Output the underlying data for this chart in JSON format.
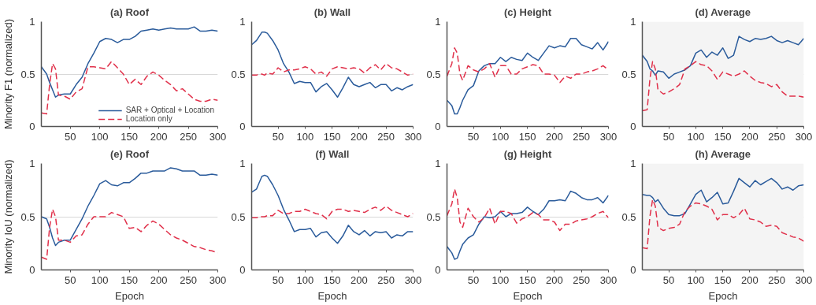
{
  "chart_data": [
    {
      "type": "line",
      "title": "(a) Roof",
      "ylabel": "Minority F1 (normalized)",
      "x": [
        1,
        10,
        15,
        20,
        25,
        30,
        40,
        50,
        60,
        70,
        80,
        90,
        100,
        110,
        120,
        130,
        140,
        150,
        160,
        170,
        180,
        190,
        200,
        210,
        220,
        230,
        240,
        250,
        260,
        270,
        280,
        290,
        300
      ],
      "xlim": [
        1,
        300
      ],
      "ylim": [
        0,
        1
      ],
      "xticks": [
        50,
        100,
        150,
        200,
        250,
        300
      ],
      "yticks": [
        0,
        0.5,
        1
      ],
      "grid": "y",
      "legend": "bottom right",
      "series": [
        {
          "name": "SAR + Optical + Location",
          "color": "#2a5b9b",
          "line_style": "solid",
          "values": [
            0.57,
            0.5,
            0.42,
            0.35,
            0.28,
            0.3,
            0.31,
            0.31,
            0.4,
            0.47,
            0.6,
            0.7,
            0.81,
            0.84,
            0.83,
            0.8,
            0.83,
            0.83,
            0.86,
            0.91,
            0.92,
            0.93,
            0.92,
            0.93,
            0.94,
            0.93,
            0.93,
            0.93,
            0.95,
            0.91,
            0.91,
            0.92,
            0.91
          ]
        },
        {
          "name": "Location only",
          "color": "#e0304a",
          "line_style": "dashed",
          "values": [
            0.13,
            0.12,
            0.4,
            0.6,
            0.55,
            0.3,
            0.29,
            0.26,
            0.33,
            0.36,
            0.57,
            0.57,
            0.56,
            0.55,
            0.62,
            0.56,
            0.5,
            0.4,
            0.45,
            0.4,
            0.48,
            0.52,
            0.49,
            0.44,
            0.4,
            0.34,
            0.36,
            0.31,
            0.26,
            0.24,
            0.24,
            0.26,
            0.25
          ]
        }
      ]
    },
    {
      "type": "line",
      "title": "(b) Wall",
      "x": [
        1,
        10,
        15,
        20,
        25,
        30,
        40,
        50,
        60,
        70,
        80,
        90,
        100,
        110,
        120,
        130,
        140,
        150,
        160,
        170,
        180,
        190,
        200,
        210,
        220,
        230,
        240,
        250,
        260,
        270,
        280,
        290,
        300
      ],
      "xlim": [
        1,
        300
      ],
      "ylim": [
        0,
        1
      ],
      "xticks": [
        50,
        100,
        150,
        200,
        250,
        300
      ],
      "yticks": [
        0,
        0.5,
        1
      ],
      "grid": "y",
      "series": [
        {
          "color": "#2a5b9b",
          "line_style": "solid",
          "values": [
            0.78,
            0.82,
            0.86,
            0.9,
            0.9,
            0.89,
            0.82,
            0.73,
            0.6,
            0.52,
            0.41,
            0.43,
            0.42,
            0.42,
            0.33,
            0.38,
            0.41,
            0.35,
            0.28,
            0.37,
            0.47,
            0.4,
            0.38,
            0.4,
            0.42,
            0.37,
            0.4,
            0.4,
            0.34,
            0.37,
            0.35,
            0.38,
            0.4
          ]
        },
        {
          "color": "#e0304a",
          "line_style": "dashed",
          "values": [
            0.49,
            0.49,
            0.5,
            0.5,
            0.49,
            0.51,
            0.5,
            0.56,
            0.52,
            0.54,
            0.54,
            0.55,
            0.57,
            0.55,
            0.5,
            0.52,
            0.48,
            0.55,
            0.57,
            0.56,
            0.55,
            0.56,
            0.55,
            0.51,
            0.56,
            0.59,
            0.54,
            0.6,
            0.56,
            0.55,
            0.52,
            0.49,
            0.5
          ]
        }
      ]
    },
    {
      "type": "line",
      "title": "(c) Height",
      "x": [
        1,
        10,
        15,
        20,
        25,
        30,
        40,
        50,
        60,
        70,
        80,
        90,
        100,
        110,
        120,
        130,
        140,
        150,
        160,
        170,
        180,
        190,
        200,
        210,
        220,
        230,
        240,
        250,
        260,
        270,
        280,
        290,
        300
      ],
      "xlim": [
        1,
        300
      ],
      "ylim": [
        0,
        1
      ],
      "xticks": [
        50,
        100,
        150,
        200,
        250,
        300
      ],
      "yticks": [
        0,
        0.5,
        1
      ],
      "grid": "y",
      "series": [
        {
          "color": "#2a5b9b",
          "line_style": "solid",
          "values": [
            0.25,
            0.2,
            0.12,
            0.12,
            0.18,
            0.25,
            0.35,
            0.39,
            0.53,
            0.58,
            0.6,
            0.6,
            0.66,
            0.62,
            0.66,
            0.64,
            0.63,
            0.7,
            0.66,
            0.63,
            0.7,
            0.77,
            0.75,
            0.77,
            0.76,
            0.84,
            0.84,
            0.78,
            0.76,
            0.74,
            0.8,
            0.73,
            0.81
          ]
        },
        {
          "color": "#e0304a",
          "line_style": "dashed",
          "values": [
            0.48,
            0.6,
            0.75,
            0.7,
            0.5,
            0.44,
            0.58,
            0.54,
            0.52,
            0.55,
            0.6,
            0.47,
            0.58,
            0.58,
            0.5,
            0.5,
            0.55,
            0.57,
            0.59,
            0.58,
            0.5,
            0.5,
            0.49,
            0.42,
            0.48,
            0.46,
            0.5,
            0.5,
            0.52,
            0.53,
            0.55,
            0.58,
            0.54
          ]
        }
      ]
    },
    {
      "type": "line",
      "title": "(d) Average",
      "x": [
        1,
        10,
        15,
        20,
        25,
        30,
        40,
        50,
        60,
        70,
        80,
        90,
        100,
        110,
        120,
        130,
        140,
        150,
        160,
        170,
        180,
        190,
        200,
        210,
        220,
        230,
        240,
        250,
        260,
        270,
        280,
        290,
        300
      ],
      "xlim": [
        1,
        300
      ],
      "ylim": [
        0,
        1
      ],
      "xticks": [
        50,
        100,
        150,
        200,
        250,
        300
      ],
      "yticks": [
        0,
        0.5,
        1
      ],
      "grid": "y",
      "bands": [
        {
          "axis": "y",
          "from": 0,
          "to": 1,
          "color": "#f4f4f4"
        }
      ],
      "series": [
        {
          "color": "#2a5b9b",
          "line_style": "solid",
          "values": [
            0.68,
            0.62,
            0.55,
            0.53,
            0.49,
            0.53,
            0.52,
            0.46,
            0.5,
            0.52,
            0.54,
            0.58,
            0.7,
            0.73,
            0.66,
            0.71,
            0.68,
            0.75,
            0.65,
            0.68,
            0.86,
            0.83,
            0.81,
            0.84,
            0.83,
            0.84,
            0.86,
            0.82,
            0.8,
            0.82,
            0.8,
            0.78,
            0.84
          ]
        },
        {
          "color": "#e0304a",
          "line_style": "dashed",
          "values": [
            0.15,
            0.16,
            0.45,
            0.62,
            0.55,
            0.35,
            0.31,
            0.33,
            0.36,
            0.4,
            0.55,
            0.58,
            0.62,
            0.59,
            0.58,
            0.53,
            0.45,
            0.52,
            0.5,
            0.48,
            0.5,
            0.53,
            0.48,
            0.44,
            0.42,
            0.41,
            0.38,
            0.4,
            0.33,
            0.29,
            0.29,
            0.29,
            0.28
          ]
        }
      ]
    },
    {
      "type": "line",
      "title": "(e) Roof",
      "ylabel": "Minority IoU (normalized)",
      "xlabel": "Epoch",
      "x": [
        1,
        10,
        15,
        20,
        25,
        30,
        40,
        50,
        60,
        70,
        80,
        90,
        100,
        110,
        120,
        130,
        140,
        150,
        160,
        170,
        180,
        190,
        200,
        210,
        220,
        230,
        240,
        250,
        260,
        270,
        280,
        290,
        300
      ],
      "xlim": [
        1,
        300
      ],
      "ylim": [
        0,
        1
      ],
      "xticks": [
        50,
        100,
        150,
        200,
        250,
        300
      ],
      "yticks": [
        0,
        0.5,
        1
      ],
      "grid": "y",
      "series": [
        {
          "color": "#2a5b9b",
          "line_style": "solid",
          "values": [
            0.5,
            0.48,
            0.4,
            0.3,
            0.23,
            0.26,
            0.28,
            0.28,
            0.38,
            0.48,
            0.6,
            0.7,
            0.81,
            0.84,
            0.8,
            0.79,
            0.82,
            0.82,
            0.86,
            0.91,
            0.91,
            0.93,
            0.93,
            0.93,
            0.96,
            0.95,
            0.93,
            0.93,
            0.93,
            0.89,
            0.89,
            0.9,
            0.89
          ]
        },
        {
          "color": "#e0304a",
          "line_style": "dashed",
          "values": [
            0.12,
            0.1,
            0.4,
            0.57,
            0.5,
            0.28,
            0.28,
            0.26,
            0.32,
            0.33,
            0.43,
            0.5,
            0.5,
            0.5,
            0.54,
            0.52,
            0.5,
            0.39,
            0.4,
            0.36,
            0.42,
            0.46,
            0.43,
            0.38,
            0.33,
            0.3,
            0.28,
            0.25,
            0.22,
            0.21,
            0.19,
            0.18,
            0.16
          ]
        }
      ]
    },
    {
      "type": "line",
      "title": "(f) Wall",
      "xlabel": "Epoch",
      "x": [
        1,
        10,
        15,
        20,
        25,
        30,
        40,
        50,
        60,
        70,
        80,
        90,
        100,
        110,
        120,
        130,
        140,
        150,
        160,
        170,
        180,
        190,
        200,
        210,
        220,
        230,
        240,
        250,
        260,
        270,
        280,
        290,
        300
      ],
      "xlim": [
        1,
        300
      ],
      "ylim": [
        0,
        1
      ],
      "xticks": [
        50,
        100,
        150,
        200,
        250,
        300
      ],
      "yticks": [
        0,
        0.5,
        1
      ],
      "grid": "y",
      "series": [
        {
          "color": "#2a5b9b",
          "line_style": "solid",
          "values": [
            0.73,
            0.76,
            0.82,
            0.88,
            0.89,
            0.88,
            0.8,
            0.7,
            0.57,
            0.47,
            0.36,
            0.38,
            0.38,
            0.39,
            0.31,
            0.35,
            0.36,
            0.3,
            0.25,
            0.32,
            0.42,
            0.36,
            0.33,
            0.37,
            0.32,
            0.36,
            0.35,
            0.36,
            0.3,
            0.33,
            0.32,
            0.36,
            0.36
          ]
        },
        {
          "color": "#e0304a",
          "line_style": "dashed",
          "values": [
            0.49,
            0.49,
            0.5,
            0.5,
            0.5,
            0.51,
            0.51,
            0.56,
            0.53,
            0.53,
            0.55,
            0.55,
            0.57,
            0.55,
            0.53,
            0.52,
            0.48,
            0.55,
            0.57,
            0.57,
            0.55,
            0.56,
            0.55,
            0.54,
            0.57,
            0.59,
            0.56,
            0.6,
            0.56,
            0.54,
            0.52,
            0.5,
            0.53
          ]
        }
      ]
    },
    {
      "type": "line",
      "title": "(g) Height",
      "xlabel": "Epoch",
      "x": [
        1,
        10,
        15,
        20,
        25,
        30,
        40,
        50,
        60,
        70,
        80,
        90,
        100,
        110,
        120,
        130,
        140,
        150,
        160,
        170,
        180,
        190,
        200,
        210,
        220,
        230,
        240,
        250,
        260,
        270,
        280,
        290,
        300
      ],
      "xlim": [
        1,
        300
      ],
      "ylim": [
        0,
        1
      ],
      "xticks": [
        50,
        100,
        150,
        200,
        250,
        300
      ],
      "yticks": [
        0,
        0.5,
        1
      ],
      "grid": "y",
      "series": [
        {
          "color": "#2a5b9b",
          "line_style": "solid",
          "values": [
            0.22,
            0.16,
            0.1,
            0.11,
            0.18,
            0.24,
            0.3,
            0.33,
            0.43,
            0.5,
            0.49,
            0.5,
            0.55,
            0.5,
            0.53,
            0.53,
            0.54,
            0.59,
            0.55,
            0.52,
            0.57,
            0.65,
            0.65,
            0.66,
            0.65,
            0.74,
            0.72,
            0.68,
            0.66,
            0.66,
            0.68,
            0.63,
            0.7
          ]
        },
        {
          "color": "#e0304a",
          "line_style": "dashed",
          "values": [
            0.51,
            0.62,
            0.76,
            0.68,
            0.45,
            0.4,
            0.58,
            0.5,
            0.45,
            0.49,
            0.58,
            0.43,
            0.55,
            0.55,
            0.53,
            0.44,
            0.48,
            0.5,
            0.54,
            0.52,
            0.47,
            0.47,
            0.45,
            0.37,
            0.43,
            0.43,
            0.46,
            0.47,
            0.48,
            0.5,
            0.53,
            0.55,
            0.49
          ]
        }
      ]
    },
    {
      "type": "line",
      "title": "(h) Average",
      "xlabel": "Epoch",
      "x": [
        1,
        10,
        15,
        20,
        25,
        30,
        40,
        50,
        60,
        70,
        80,
        90,
        100,
        110,
        120,
        130,
        140,
        150,
        160,
        170,
        180,
        190,
        200,
        210,
        220,
        230,
        240,
        250,
        260,
        270,
        280,
        290,
        300
      ],
      "xlim": [
        1,
        300
      ],
      "ylim": [
        0,
        1
      ],
      "xticks": [
        50,
        100,
        150,
        200,
        250,
        300
      ],
      "yticks": [
        0,
        0.5,
        1
      ],
      "grid": "y",
      "bands": [
        {
          "axis": "y",
          "from": 0,
          "to": 1,
          "color": "#f4f4f4"
        }
      ],
      "series": [
        {
          "color": "#2a5b9b",
          "line_style": "solid",
          "values": [
            0.71,
            0.7,
            0.7,
            0.68,
            0.64,
            0.66,
            0.58,
            0.52,
            0.51,
            0.51,
            0.53,
            0.62,
            0.71,
            0.75,
            0.64,
            0.68,
            0.73,
            0.62,
            0.63,
            0.74,
            0.86,
            0.82,
            0.78,
            0.84,
            0.8,
            0.83,
            0.86,
            0.82,
            0.76,
            0.78,
            0.75,
            0.79,
            0.8
          ]
        },
        {
          "color": "#e0304a",
          "line_style": "dashed",
          "values": [
            0.21,
            0.2,
            0.5,
            0.66,
            0.6,
            0.4,
            0.37,
            0.39,
            0.4,
            0.43,
            0.55,
            0.6,
            0.63,
            0.62,
            0.6,
            0.57,
            0.47,
            0.52,
            0.52,
            0.49,
            0.52,
            0.58,
            0.48,
            0.47,
            0.45,
            0.41,
            0.42,
            0.41,
            0.35,
            0.33,
            0.31,
            0.3,
            0.27
          ]
        }
      ]
    }
  ]
}
